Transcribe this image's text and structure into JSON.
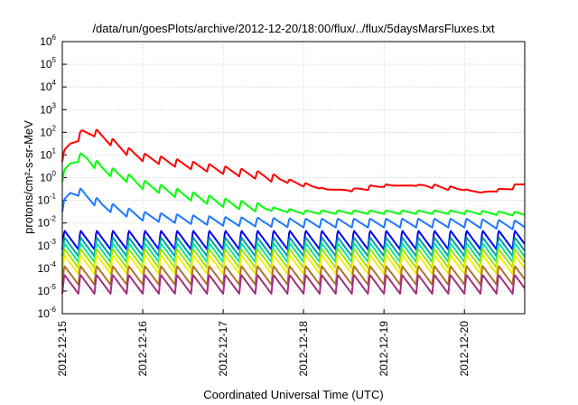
{
  "chart_data": {
    "type": "line",
    "title": "/data/run/goesPlots/archive/2012-12-20/18:00/flux/../flux/5daysMarsFluxes.txt",
    "xlabel": "Coordinated Universal Time (UTC)",
    "ylabel": "protons/cm²-s-sr-MeV",
    "yscale": "log",
    "ylim": [
      1e-06,
      1000000.0
    ],
    "xlim": [
      "2012-12-15",
      "2012-12-20 18:00"
    ],
    "xticks": [
      "2012-12-15",
      "2012-12-16",
      "2012-12-17",
      "2012-12-18",
      "2012-12-19",
      "2012-12-20"
    ],
    "yticks": [
      {
        "base": "10",
        "exp": "-6"
      },
      {
        "base": "10",
        "exp": "-5"
      },
      {
        "base": "10",
        "exp": "-4"
      },
      {
        "base": "10",
        "exp": "-3"
      },
      {
        "base": "10",
        "exp": "-2"
      },
      {
        "base": "10",
        "exp": "-1"
      },
      {
        "base": "10",
        "exp": "0"
      },
      {
        "base": "10",
        "exp": "1"
      },
      {
        "base": "10",
        "exp": "2"
      },
      {
        "base": "10",
        "exp": "3"
      },
      {
        "base": "10",
        "exp": "4"
      },
      {
        "base": "10",
        "exp": "5"
      },
      {
        "base": "10",
        "exp": "6"
      }
    ],
    "grid": true,
    "series": [
      {
        "color": "#ff0000",
        "x_days": [
          0,
          0.1,
          0.25,
          0.4,
          0.6,
          0.8,
          1.0,
          1.5,
          2.0,
          2.5,
          3.0,
          3.3,
          3.6,
          4.0,
          4.5,
          5.0,
          5.2,
          5.5,
          5.75
        ],
        "values": [
          8,
          30,
          90,
          100,
          40,
          15,
          8,
          4,
          2.2,
          1.2,
          0.5,
          0.3,
          0.28,
          0.45,
          0.45,
          0.3,
          0.22,
          0.3,
          0.55
        ]
      },
      {
        "color": "#00ff00",
        "x_days": [
          0,
          0.1,
          0.2,
          0.3,
          0.5,
          0.8,
          1.0,
          1.5,
          2.0,
          2.5,
          3.0,
          4.0,
          5.0,
          5.75
        ],
        "values": [
          1,
          4,
          8,
          7,
          2.5,
          1,
          0.5,
          0.18,
          0.08,
          0.045,
          0.03,
          0.03,
          0.03,
          0.025
        ]
      },
      {
        "color": "#1e78ff",
        "x_days": [
          0,
          0.1,
          0.2,
          0.3,
          0.5,
          0.8,
          1.0,
          1.5,
          2.0,
          3.0,
          4.0,
          5.0,
          5.75
        ],
        "values": [
          0.05,
          0.2,
          0.25,
          0.15,
          0.06,
          0.03,
          0.02,
          0.015,
          0.012,
          0.01,
          0.01,
          0.01,
          0.008
        ]
      },
      {
        "color": "#0000ee",
        "x_days": [
          0,
          5.75
        ],
        "values": [
          0.0018,
          0.0018
        ]
      },
      {
        "color": "#00a0a0",
        "x_days": [
          0,
          5.75
        ],
        "values": [
          0.0009,
          0.0009
        ]
      },
      {
        "color": "#00e6a0",
        "x_days": [
          0,
          5.75
        ],
        "values": [
          0.0005,
          0.0005
        ]
      },
      {
        "color": "#a8e000",
        "x_days": [
          0,
          5.75
        ],
        "values": [
          0.00028,
          0.00028
        ]
      },
      {
        "color": "#f0f000",
        "x_days": [
          0,
          5.75
        ],
        "values": [
          0.00015,
          0.00015
        ]
      },
      {
        "color": "#b07030",
        "x_days": [
          0,
          5.75
        ],
        "values": [
          5e-05,
          5e-05
        ]
      },
      {
        "color": "#a03080",
        "x_days": [
          0,
          5.75
        ],
        "values": [
          2e-05,
          2e-05
        ]
      }
    ]
  }
}
